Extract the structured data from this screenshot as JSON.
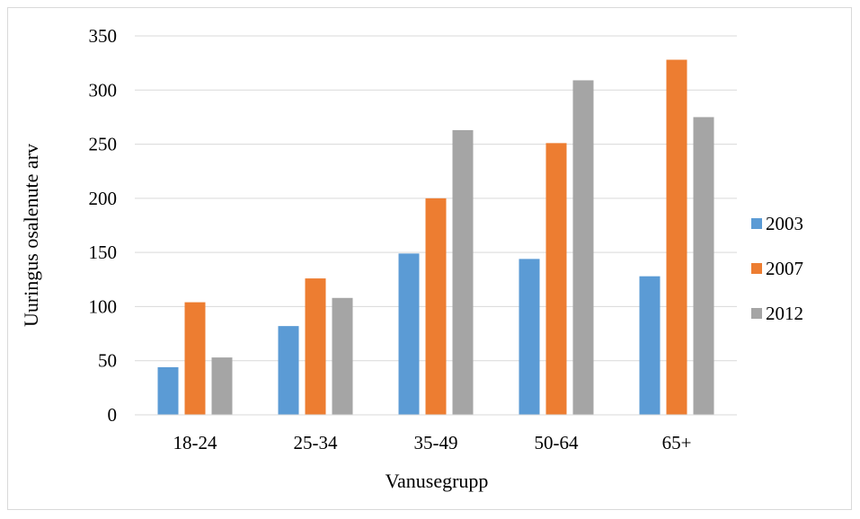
{
  "chart_data": {
    "type": "bar",
    "categories": [
      "18-24",
      "25-34",
      "35-49",
      "50-64",
      "65+"
    ],
    "series": [
      {
        "name": "2003",
        "color": "#5b9bd5",
        "values": [
          44,
          82,
          149,
          144,
          128
        ]
      },
      {
        "name": "2007",
        "color": "#ed7d31",
        "values": [
          104,
          126,
          200,
          251,
          328
        ]
      },
      {
        "name": "2012",
        "color": "#a5a5a5",
        "values": [
          53,
          108,
          263,
          309,
          275
        ]
      }
    ],
    "xlabel": "Vanusegrupp",
    "ylabel": "Uuringus osalenute arv",
    "ylim": [
      0,
      350
    ],
    "yticks": [
      0,
      50,
      100,
      150,
      200,
      250,
      300,
      350
    ],
    "grid": true,
    "legend_position": "right"
  }
}
